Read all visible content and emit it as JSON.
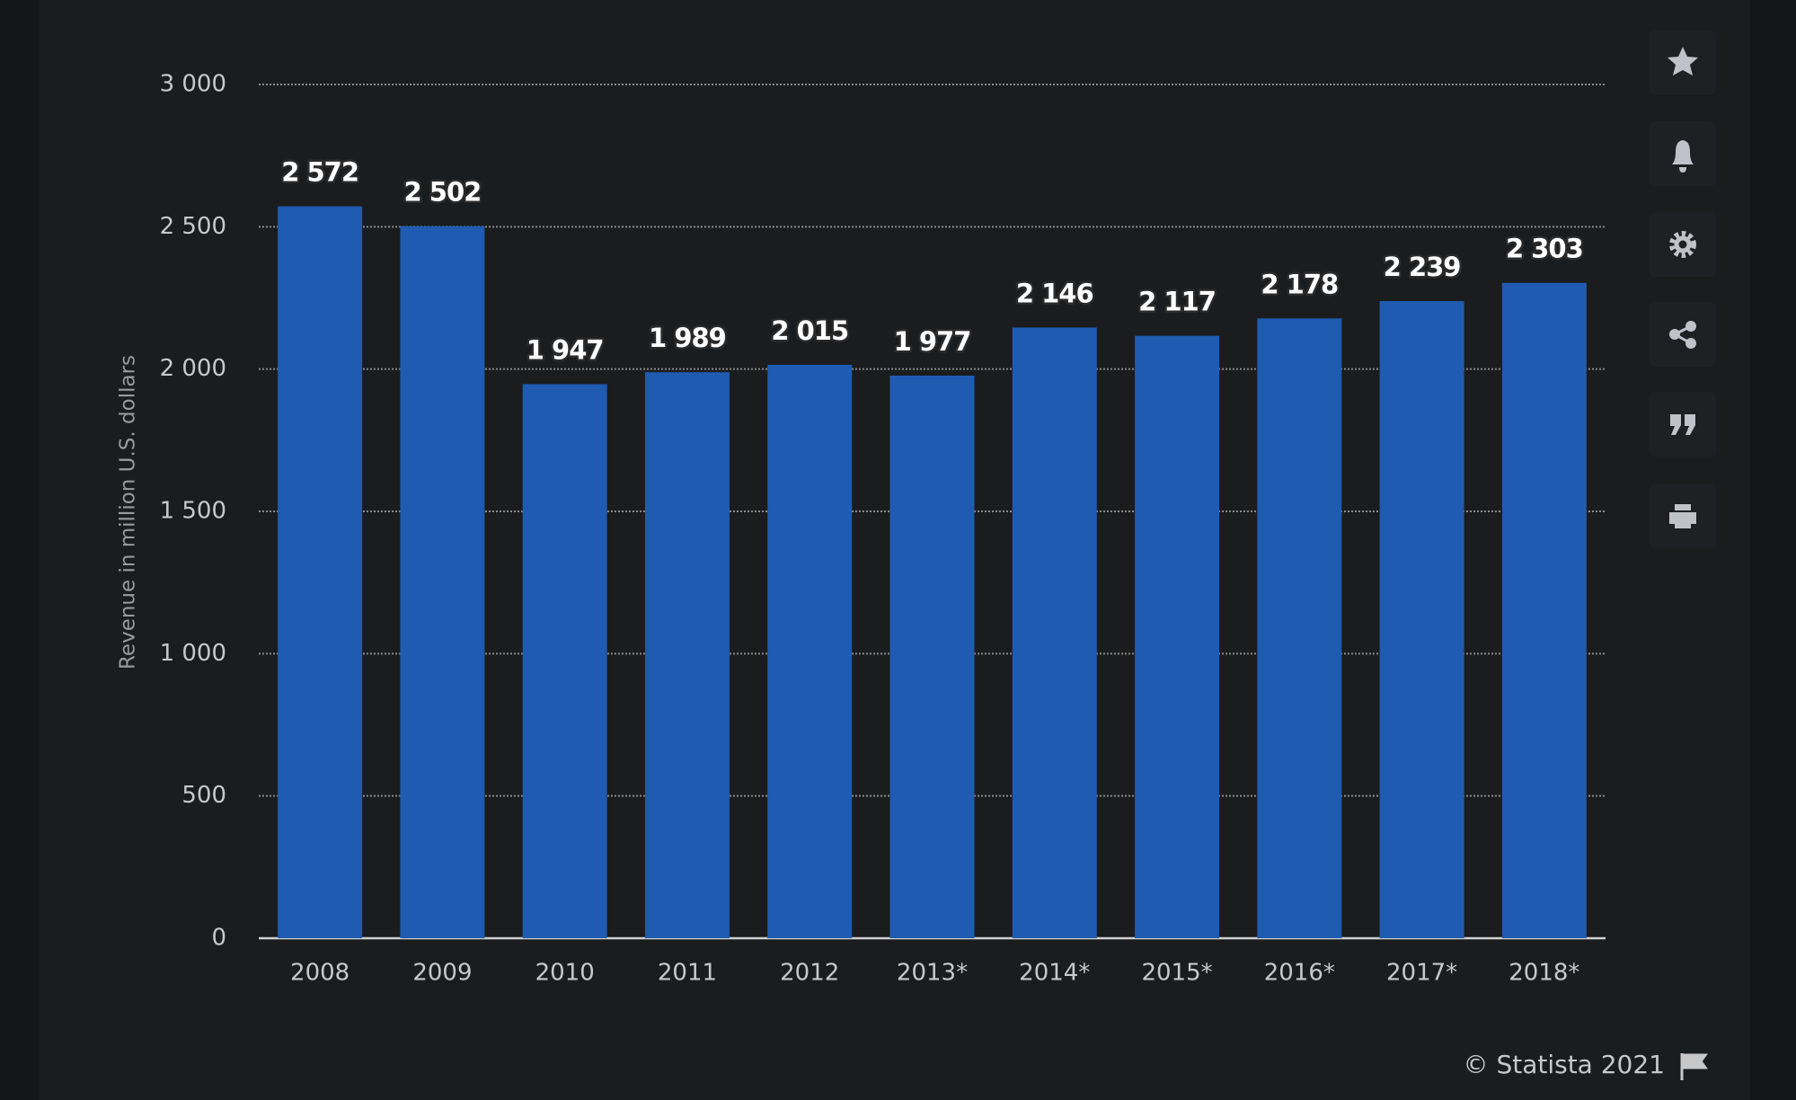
{
  "chart_data": {
    "type": "bar",
    "y_axis_label": "Revenue in million U.S. dollars",
    "categories": [
      "2008",
      "2009",
      "2010",
      "2011",
      "2012",
      "2013*",
      "2014*",
      "2015*",
      "2016*",
      "2017*",
      "2018*"
    ],
    "values": [
      2572,
      2502,
      1947,
      1989,
      2015,
      1977,
      2146,
      2117,
      2178,
      2239,
      2303
    ],
    "value_labels": [
      "2 572",
      "2 502",
      "1 947",
      "1 989",
      "2 015",
      "1 977",
      "2 146",
      "2 117",
      "2 178",
      "2 239",
      "2 303"
    ],
    "color": "#1f5bb0",
    "ylim": [
      0,
      3000
    ],
    "yticks": [
      0,
      500,
      {
        "value": 1000,
        "label": "1 000"
      },
      {
        "value": 1500,
        "label": "1 500"
      },
      {
        "value": 2000,
        "label": "2 000"
      },
      {
        "value": 2500,
        "label": "2 500"
      },
      {
        "value": 3000,
        "label": "3 000"
      }
    ],
    "grid": true,
    "credit": "© Statista 2021"
  }
}
